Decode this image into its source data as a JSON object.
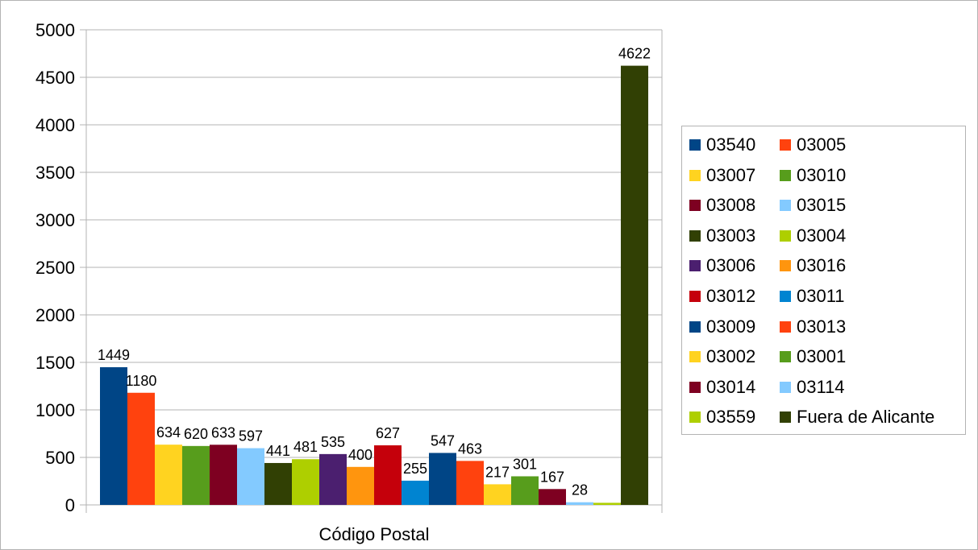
{
  "chart_data": {
    "type": "bar",
    "categories": [
      "Código Postal"
    ],
    "xlabel": "Código Postal",
    "ylabel": "",
    "title": "",
    "ylim": [
      0,
      5000
    ],
    "yticks": [
      0,
      500,
      1000,
      1500,
      2000,
      2500,
      3000,
      3500,
      4000,
      4500,
      5000
    ],
    "grid": true,
    "legend_position": "right",
    "series": [
      {
        "name": "03540",
        "values": [
          1449
        ],
        "label": "1449",
        "color": "#004586"
      },
      {
        "name": "03005",
        "values": [
          1180
        ],
        "label": "1180",
        "color": "#ff420e"
      },
      {
        "name": "03007",
        "values": [
          634
        ],
        "label": "634",
        "color": "#ffd320"
      },
      {
        "name": "03010",
        "values": [
          620
        ],
        "label": "620",
        "color": "#579d1c"
      },
      {
        "name": "03008",
        "values": [
          633
        ],
        "label": "633",
        "color": "#7e0021"
      },
      {
        "name": "03015",
        "values": [
          597
        ],
        "label": "597",
        "color": "#83caff"
      },
      {
        "name": "03003",
        "values": [
          441
        ],
        "label": "441",
        "color": "#314004"
      },
      {
        "name": "03004",
        "values": [
          481
        ],
        "label": "481",
        "color": "#aecf00"
      },
      {
        "name": "03006",
        "values": [
          535
        ],
        "label": "535",
        "color": "#4b1f6f"
      },
      {
        "name": "03016",
        "values": [
          400
        ],
        "label": "400",
        "color": "#ff950e"
      },
      {
        "name": "03012",
        "values": [
          627
        ],
        "label": "627",
        "color": "#c5000b"
      },
      {
        "name": "03011",
        "values": [
          255
        ],
        "label": "255",
        "color": "#0084d1"
      },
      {
        "name": "03009",
        "values": [
          547
        ],
        "label": "547",
        "color": "#004586"
      },
      {
        "name": "03013",
        "values": [
          463
        ],
        "label": "463",
        "color": "#ff420e"
      },
      {
        "name": "03002",
        "values": [
          217
        ],
        "label": "217",
        "color": "#ffd320"
      },
      {
        "name": "03001",
        "values": [
          301
        ],
        "label": "301",
        "color": "#579d1c"
      },
      {
        "name": "03014",
        "values": [
          167
        ],
        "label": "167",
        "color": "#7e0021"
      },
      {
        "name": "03114",
        "values": [
          28
        ],
        "label": "28",
        "color": "#83caff"
      },
      {
        "name": "03559",
        "values": [
          22
        ],
        "label": "",
        "color": "#aecf00"
      },
      {
        "name": "Fuera de Alicante",
        "values": [
          4622
        ],
        "label": "4622",
        "color": "#314004"
      }
    ]
  }
}
